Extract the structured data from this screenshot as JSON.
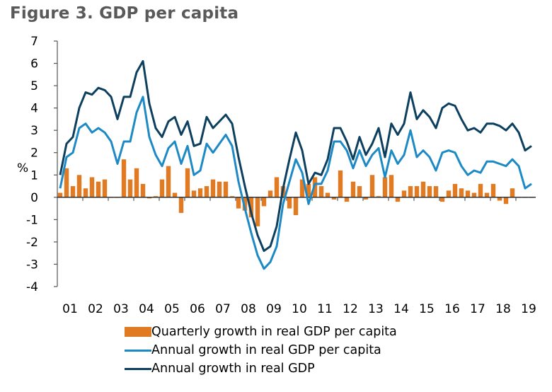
{
  "chart_data": {
    "type": "bar+line",
    "title": "Figure 3. GDP per capita",
    "xlabel": "",
    "ylabel": "%",
    "ylim": [
      -4,
      7
    ],
    "yticks": [
      7,
      6,
      5,
      4,
      3,
      2,
      1,
      0,
      -1,
      -2,
      -3,
      -4
    ],
    "x_tick_labels": [
      "01",
      "02",
      "03",
      "04",
      "05",
      "06",
      "07",
      "08",
      "09",
      "10",
      "11",
      "12",
      "13",
      "14",
      "15",
      "16",
      "17",
      "18",
      "19"
    ],
    "x_frequency": "quarterly",
    "x_start": "2001Q1",
    "grid": false,
    "legend_position": "bottom",
    "series": [
      {
        "name": "Quarterly growth in real GDP per capita",
        "kind": "bar",
        "color": "#e07b24",
        "values": [
          0.2,
          1.3,
          0.5,
          1.0,
          0.4,
          0.9,
          0.7,
          0.8,
          0.0,
          0.0,
          1.7,
          0.8,
          1.3,
          0.6,
          -0.05,
          0.05,
          0.8,
          1.4,
          0.2,
          -0.7,
          1.3,
          0.3,
          0.4,
          0.5,
          0.8,
          0.7,
          0.7,
          0.05,
          -0.5,
          -0.6,
          -0.9,
          -1.3,
          -0.4,
          0.3,
          0.9,
          0.5,
          -0.5,
          -0.8,
          0.8,
          0.6,
          0.9,
          0.5,
          0.2,
          -0.1,
          1.2,
          -0.2,
          0.7,
          0.5,
          -0.1,
          1.0,
          0.05,
          0.9,
          1.0,
          -0.2,
          0.3,
          0.5,
          0.5,
          0.7,
          0.5,
          0.5,
          -0.2,
          0.3,
          0.6,
          0.4,
          0.3,
          0.2,
          0.6,
          0.2,
          0.6,
          -0.15,
          -0.3,
          0.4,
          0.0,
          0.0,
          0.0
        ]
      },
      {
        "name": "Annual growth in real GDP per capita",
        "kind": "line",
        "color": "#1d8ac5",
        "values": [
          0.4,
          1.8,
          2.0,
          3.1,
          3.3,
          2.9,
          3.1,
          2.9,
          2.5,
          1.5,
          2.5,
          2.5,
          3.8,
          4.5,
          2.7,
          1.9,
          1.4,
          2.2,
          2.5,
          1.5,
          2.3,
          1.0,
          1.2,
          2.4,
          2.0,
          2.4,
          2.8,
          2.3,
          0.7,
          -0.5,
          -1.6,
          -2.6,
          -3.2,
          -2.9,
          -2.2,
          -0.3,
          0.7,
          1.7,
          1.1,
          -0.3,
          0.6,
          0.6,
          1.2,
          2.5,
          2.5,
          2.1,
          1.3,
          2.1,
          1.4,
          1.9,
          2.2,
          0.9,
          2.1,
          1.5,
          1.9,
          3.0,
          1.8,
          2.1,
          1.8,
          1.2,
          2.0,
          2.1,
          2.0,
          1.4,
          1.0,
          1.2,
          1.1,
          1.6,
          1.6,
          1.5,
          1.4,
          1.7,
          1.4,
          0.4,
          0.6
        ]
      },
      {
        "name": "Annual growth in real GDP",
        "kind": "line",
        "color": "#0d3f5f",
        "values": [
          1.0,
          2.4,
          2.7,
          4.0,
          4.7,
          4.6,
          4.9,
          4.8,
          4.5,
          3.5,
          4.5,
          4.5,
          5.6,
          6.1,
          4.2,
          3.1,
          2.7,
          3.4,
          3.6,
          2.8,
          3.4,
          2.3,
          2.4,
          3.6,
          3.1,
          3.4,
          3.7,
          3.3,
          1.8,
          0.5,
          -0.7,
          -1.7,
          -2.4,
          -2.2,
          -1.3,
          0.4,
          1.7,
          2.9,
          2.1,
          0.6,
          1.1,
          1.0,
          1.7,
          3.1,
          3.1,
          2.5,
          1.7,
          2.7,
          1.9,
          2.4,
          3.1,
          1.8,
          3.3,
          2.8,
          3.3,
          4.7,
          3.5,
          3.9,
          3.6,
          3.1,
          4.0,
          4.2,
          4.1,
          3.5,
          3.0,
          3.1,
          2.9,
          3.3,
          3.3,
          3.2,
          3.0,
          3.3,
          2.9,
          2.1,
          2.3
        ]
      }
    ]
  }
}
